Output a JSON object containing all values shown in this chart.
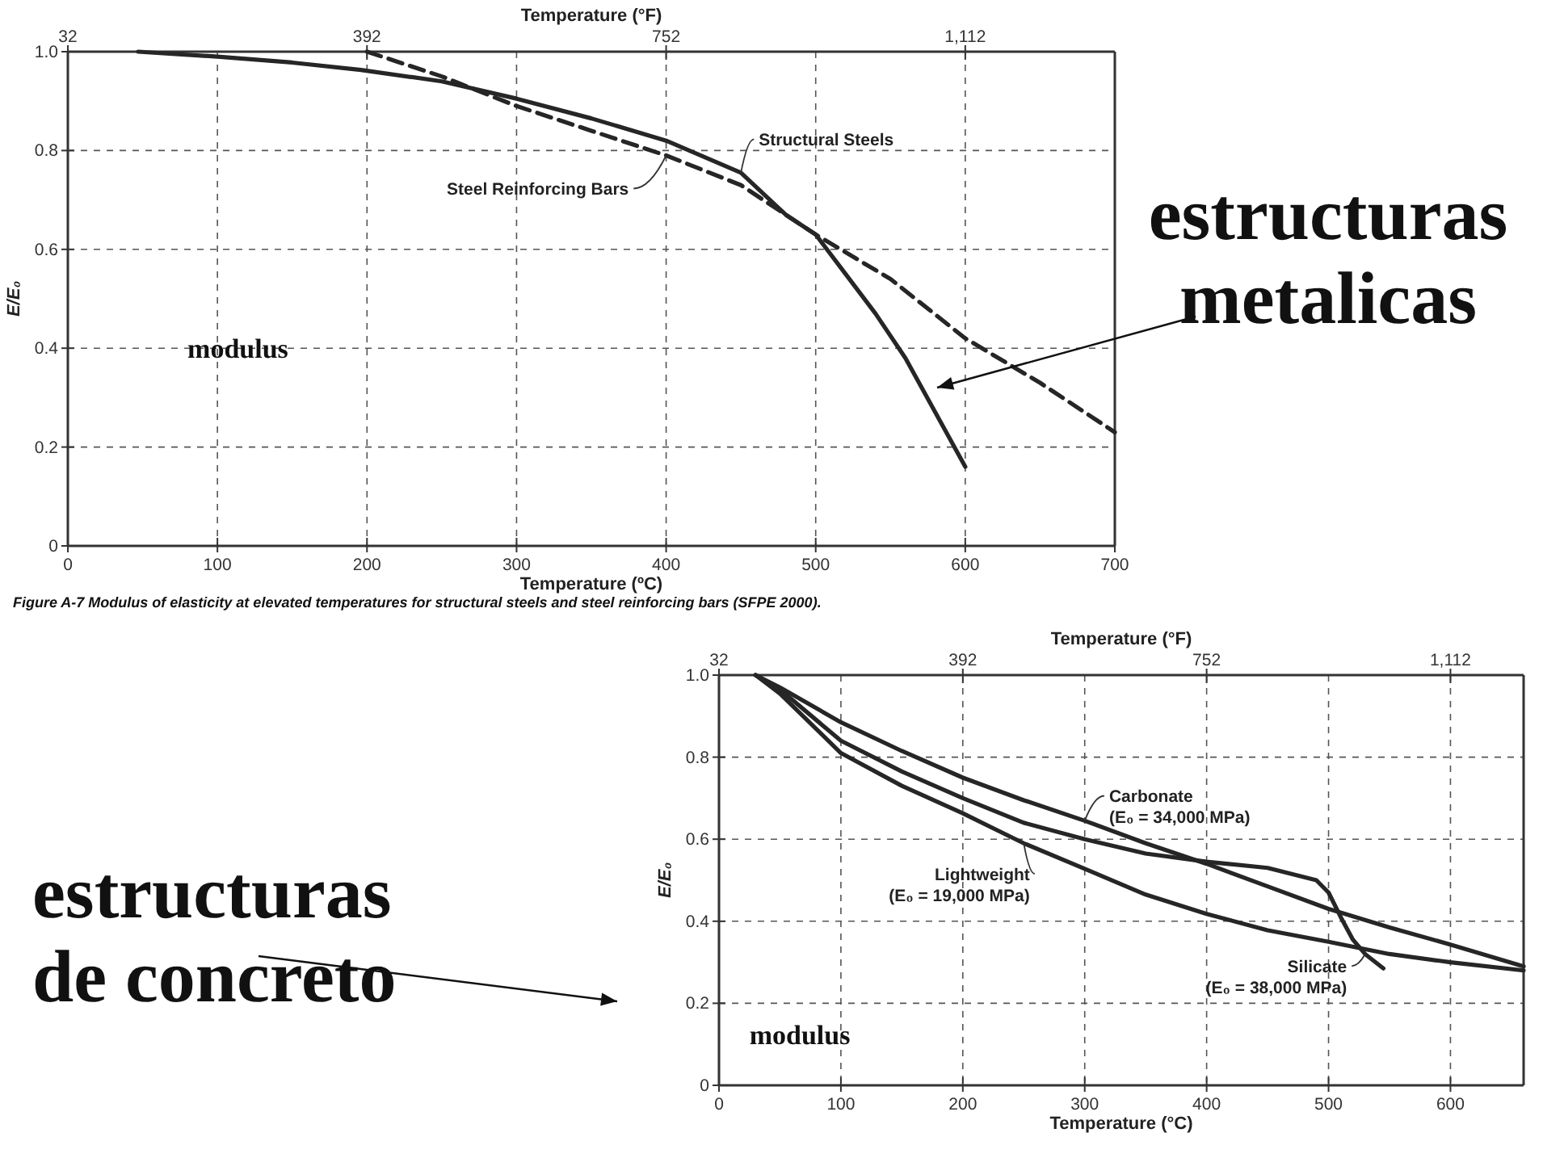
{
  "chart_data": [
    {
      "type": "line",
      "xlabel": "Temperature (ºC)",
      "x2label": "Temperature (°F)",
      "ylabel": "E/E₀",
      "xlim": [
        0,
        700
      ],
      "xticks": [
        0,
        100,
        200,
        300,
        400,
        500,
        600,
        700
      ],
      "x2lim": [
        32,
        1292
      ],
      "x2ticks": [
        32,
        392,
        752,
        {
          "value": 1112,
          "label": "1,112"
        }
      ],
      "ylim": [
        0,
        1
      ],
      "yticks": [
        0,
        0.2,
        0.4,
        0.6,
        0.8,
        {
          "value": 1,
          "label": "1.0"
        }
      ],
      "grid": true,
      "series": [
        {
          "name": "Structural Steels",
          "color": "#262626",
          "line_style": "solid",
          "x": [
            47,
            100,
            150,
            196,
            250,
            300,
            350,
            400,
            450,
            480,
            500,
            520,
            540,
            560,
            580,
            600
          ],
          "values": [
            1.0,
            0.99,
            0.978,
            0.963,
            0.94,
            0.905,
            0.865,
            0.82,
            0.755,
            0.67,
            0.63,
            0.55,
            0.47,
            0.38,
            0.27,
            0.16
          ]
        },
        {
          "name": "Steel Reinforcing Bars",
          "color": "#262626",
          "line_style": "dashed",
          "x": [
            200,
            250,
            300,
            350,
            400,
            450,
            500,
            550,
            600,
            650,
            700
          ],
          "values": [
            1.0,
            0.95,
            0.89,
            0.84,
            0.79,
            0.73,
            0.63,
            0.54,
            0.42,
            0.33,
            0.23
          ]
        }
      ],
      "annotations": [
        "modulus",
        "Figure A-7   Modulus of elasticity at elevated temperatures for structural steels and steel reinforcing bars (SFPE 2000).",
        "estructuras metalicas"
      ]
    },
    {
      "type": "line",
      "xlabel": "Temperature (°C)",
      "x2label": "Temperature (°F)",
      "ylabel": "E/E₀",
      "xlim": [
        0,
        660
      ],
      "xticks": [
        0,
        100,
        200,
        300,
        400,
        500,
        600
      ],
      "x2lim": [
        32,
        1220
      ],
      "x2ticks": [
        32,
        392,
        752,
        {
          "value": 1112,
          "label": "1,112"
        }
      ],
      "ylim": [
        0,
        1
      ],
      "yticks": [
        0,
        0.2,
        0.4,
        0.6,
        0.8,
        {
          "value": 1,
          "label": "1.0"
        }
      ],
      "grid": true,
      "series": [
        {
          "name": "Carbonate (E₀ = 34,000 MPa)",
          "color": "#262626",
          "line_style": "solid",
          "x": [
            30,
            50,
            100,
            150,
            200,
            250,
            300,
            350,
            400,
            450,
            500,
            550,
            600,
            660
          ],
          "values": [
            1.0,
            0.97,
            0.885,
            0.815,
            0.75,
            0.695,
            0.645,
            0.59,
            0.54,
            0.485,
            0.43,
            0.385,
            0.343,
            0.29
          ]
        },
        {
          "name": "Silicate (E₀ = 38,000 MPa)",
          "color": "#262626",
          "line_style": "solid",
          "x": [
            30,
            50,
            100,
            150,
            200,
            250,
            300,
            350,
            400,
            450,
            490,
            500,
            510,
            520,
            530,
            545
          ],
          "values": [
            1.0,
            0.965,
            0.84,
            0.765,
            0.7,
            0.64,
            0.6,
            0.565,
            0.545,
            0.53,
            0.5,
            0.47,
            0.41,
            0.355,
            0.32,
            0.285
          ]
        },
        {
          "name": "Lightweight (E₀ = 19,000 MPa)",
          "color": "#262626",
          "line_style": "solid",
          "x": [
            30,
            50,
            100,
            150,
            200,
            250,
            300,
            350,
            400,
            450,
            500,
            550,
            600,
            660
          ],
          "values": [
            1.0,
            0.955,
            0.81,
            0.73,
            0.663,
            0.59,
            0.528,
            0.465,
            0.418,
            0.378,
            0.35,
            0.32,
            0.3,
            0.28
          ]
        }
      ],
      "annotations": [
        "modulus",
        "estructuras de concreto"
      ]
    }
  ]
}
